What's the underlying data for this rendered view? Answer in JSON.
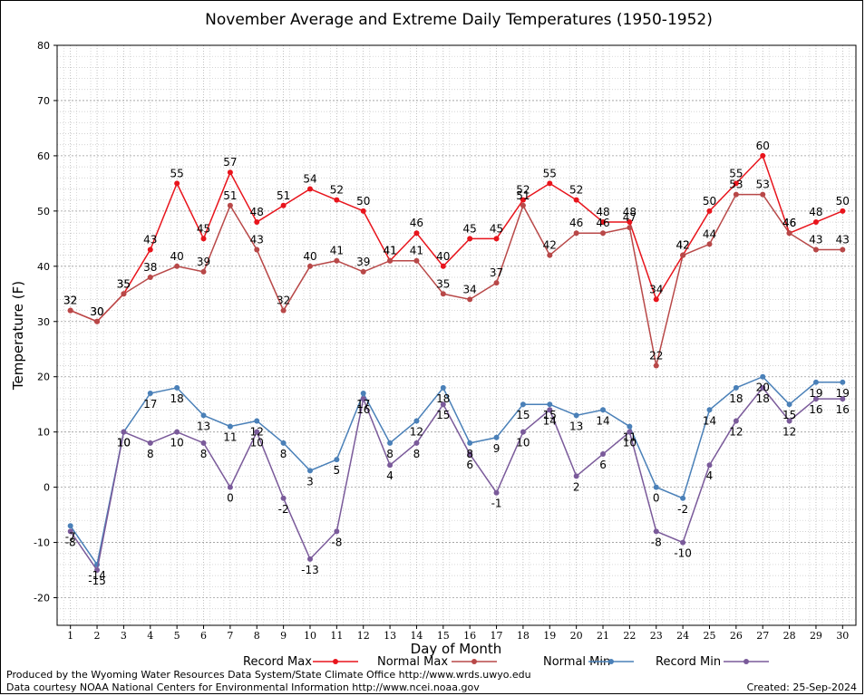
{
  "chart_data": {
    "type": "line",
    "title": "November Average and Extreme Daily Temperatures (1950-1952)",
    "xlabel": "Day of Month",
    "ylabel": "Temperature (F)",
    "ylim": [
      -25,
      80
    ],
    "yticks": [
      -20,
      -10,
      0,
      10,
      20,
      30,
      40,
      50,
      60,
      70,
      80
    ],
    "x": [
      1,
      2,
      3,
      4,
      5,
      6,
      7,
      8,
      9,
      10,
      11,
      12,
      13,
      14,
      15,
      16,
      17,
      18,
      19,
      20,
      21,
      22,
      23,
      24,
      25,
      26,
      27,
      28,
      29,
      30
    ],
    "grid": true,
    "legend_position": "bottom",
    "series": [
      {
        "name": "Record Max",
        "color": "#e8141c",
        "values": [
          32,
          30,
          35,
          43,
          55,
          45,
          57,
          48,
          51,
          54,
          52,
          50,
          41,
          46,
          40,
          45,
          45,
          52,
          55,
          52,
          48,
          48,
          34,
          42,
          50,
          55,
          60,
          46,
          48,
          50
        ]
      },
      {
        "name": "Normal Max",
        "color": "#b84848",
        "values": [
          32,
          30,
          35,
          38,
          40,
          39,
          51,
          43,
          32,
          40,
          41,
          39,
          41,
          41,
          35,
          34,
          37,
          51,
          42,
          46,
          46,
          47,
          22,
          42,
          44,
          53,
          53,
          46,
          43,
          43
        ]
      },
      {
        "name": "Normal Min",
        "color": "#4a80b8",
        "values": [
          -7,
          -14,
          10,
          17,
          18,
          13,
          11,
          12,
          8,
          3,
          5,
          17,
          8,
          12,
          18,
          8,
          9,
          15,
          15,
          13,
          14,
          11,
          0,
          -2,
          14,
          18,
          20,
          15,
          19,
          19
        ]
      },
      {
        "name": "Record Min",
        "color": "#7a5a9a",
        "values": [
          -8,
          -15,
          10,
          8,
          10,
          8,
          0,
          10,
          -2,
          -13,
          -8,
          16,
          4,
          8,
          15,
          6,
          -1,
          10,
          14,
          2,
          6,
          10,
          -8,
          -10,
          4,
          12,
          18,
          12,
          16,
          16
        ]
      }
    ]
  },
  "footer": {
    "produced_by": "Produced by the Wyoming Water Resources Data System/State Climate Office http://www.wrds.uwyo.edu",
    "courtesy": "Data courtesy NOAA National Centers for Environmental Information http://www.ncei.noaa.gov",
    "created": "Created:  25-Sep-2024"
  }
}
